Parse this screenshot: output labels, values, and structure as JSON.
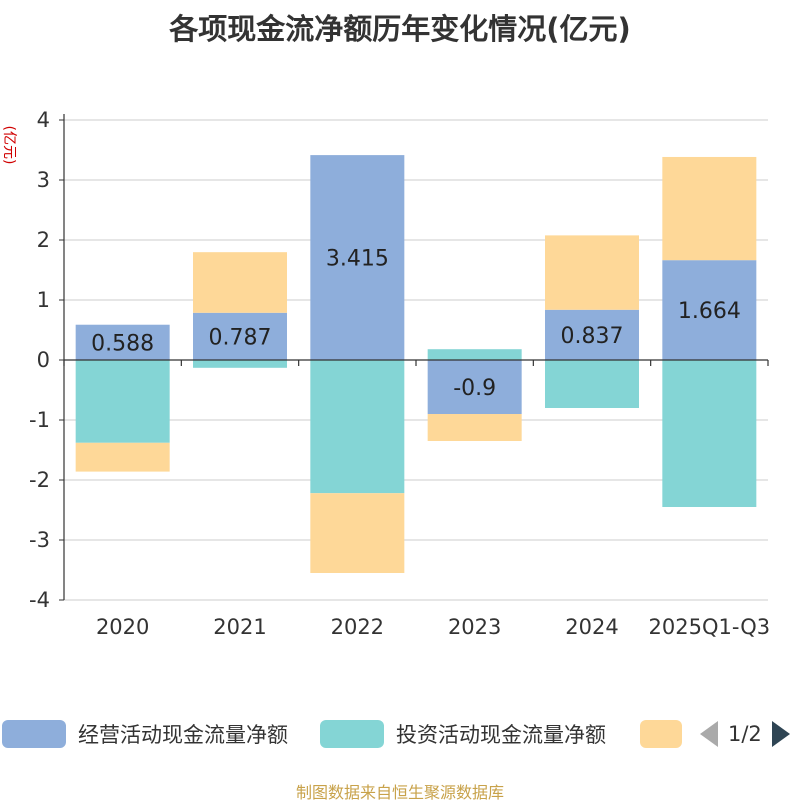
{
  "chart_data": {
    "type": "bar",
    "stacked": true,
    "title": "各项现金流净额历年变化情况(亿元)",
    "ylabel": "(亿元)",
    "xlabel": "",
    "ylim": [
      -4,
      4
    ],
    "yticks": [
      -4,
      -3,
      -2,
      -1,
      0,
      1,
      2,
      3,
      4
    ],
    "categories": [
      "2020",
      "2021",
      "2022",
      "2023",
      "2024",
      "2025Q1-Q3"
    ],
    "series": [
      {
        "name": "经营活动现金流量净额",
        "color": "#8eaedb",
        "values": [
          0.588,
          0.787,
          3.415,
          -0.9,
          0.837,
          1.664
        ],
        "show_labels": true
      },
      {
        "name": "投资活动现金流量净额",
        "color": "#84d5d5",
        "values": [
          -1.38,
          -0.13,
          -2.22,
          0.18,
          -0.8,
          -2.45
        ],
        "show_labels": false
      },
      {
        "name": "",
        "color": "#fed898",
        "values": [
          -0.48,
          1.01,
          -1.33,
          -0.45,
          1.24,
          1.72
        ],
        "show_labels": false
      }
    ],
    "legend": {
      "position": "bottom",
      "page": "1/2"
    }
  },
  "footer": "制图数据来自恒生聚源数据库"
}
